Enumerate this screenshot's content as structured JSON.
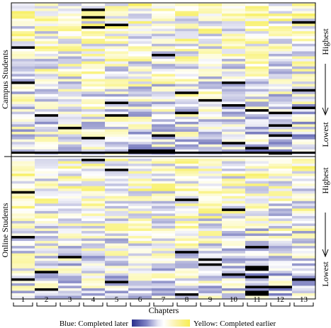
{
  "chart_data": {
    "type": "heatmap",
    "xlabel": "Chapters",
    "x_categories": [
      "1",
      "2",
      "3",
      "4",
      "5",
      "6",
      "7",
      "8",
      "9",
      "10",
      "11",
      "12",
      "13"
    ],
    "groups": [
      {
        "name": "Campus Students",
        "rows": 60
      },
      {
        "name": "Online Students",
        "rows": 56
      }
    ],
    "right_labels": {
      "campus": {
        "top": "Highest",
        "bottom": "Lowest"
      },
      "online": {
        "top": "Highest",
        "bottom": "Lowest"
      }
    },
    "legend": {
      "left": "Blue: Completed later",
      "right": "Yellow: Completed earlier",
      "colors": [
        "#2b2f8c",
        "#7e82c4",
        "#c9cbe8",
        "#ffffff",
        "#fbf3b0",
        "#f7ee52"
      ]
    },
    "value_encoding": "-1 (completed later, blue) to +1 (completed earlier, yellow); null = black (not completed)",
    "cell_values": "approximate pattern reconstructed from image"
  }
}
